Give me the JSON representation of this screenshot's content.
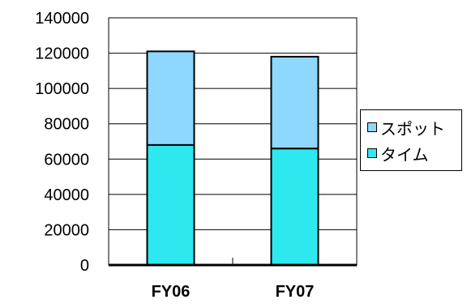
{
  "chart_data": {
    "type": "bar",
    "stacked": true,
    "categories": [
      "FY06",
      "FY07"
    ],
    "series": [
      {
        "name": "タイム",
        "values": [
          68000,
          66000
        ],
        "color": "#2ee8f0"
      },
      {
        "name": "スポット",
        "values": [
          53000,
          52000
        ],
        "color": "#8ed7fd"
      }
    ],
    "yticks": [
      "0",
      "20000",
      "40000",
      "60000",
      "80000",
      "100000",
      "120000",
      "140000"
    ],
    "ylim": [
      0,
      140000
    ],
    "grid": true,
    "legend_position": "right",
    "title": "",
    "xlabel": "",
    "ylabel": ""
  },
  "legend": {
    "items": [
      {
        "label": "スポット",
        "color": "#8ed7fd"
      },
      {
        "label": "タイム",
        "color": "#2ee8f0"
      }
    ]
  }
}
